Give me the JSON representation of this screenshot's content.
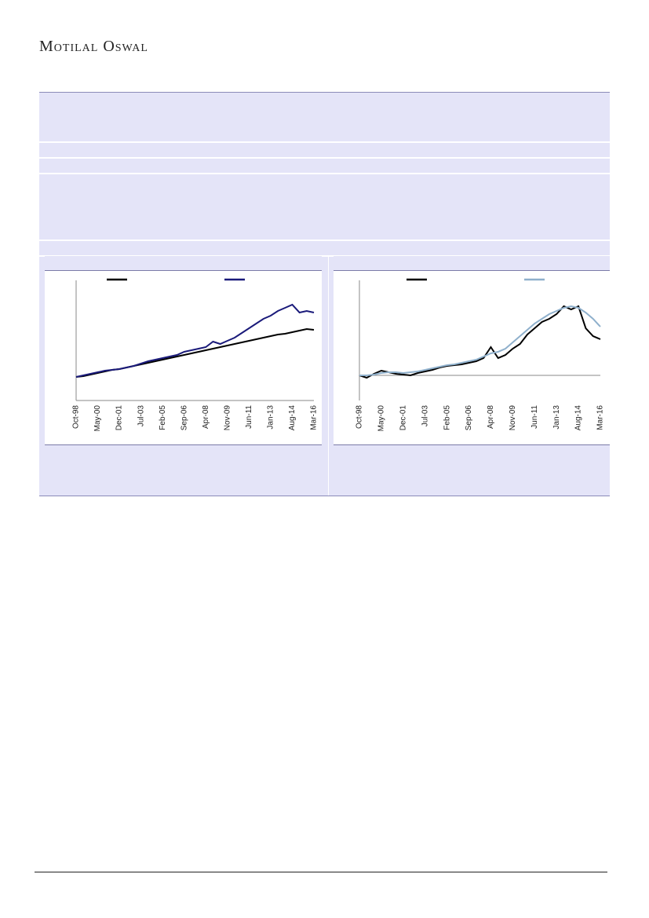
{
  "header": {
    "brand": "Motilal Oswal"
  },
  "chart_data": [
    {
      "type": "line",
      "categories": [
        "Oct-98",
        null,
        null,
        "May-00",
        null,
        null,
        "Dec-01",
        null,
        null,
        "Jul-03",
        null,
        null,
        "Feb-05",
        null,
        null,
        "Sep-06",
        null,
        null,
        "Apr-08",
        null,
        null,
        "Nov-09",
        null,
        null,
        "Jun-11",
        null,
        null,
        "Jan-13",
        null,
        null,
        "Aug-14",
        null,
        null,
        "Mar-16"
      ],
      "ylim": [
        -30,
        123
      ],
      "series": [
        {
          "color": "#000000",
          "values": [
            0,
            1,
            3,
            5,
            7,
            9,
            10,
            12,
            14,
            16,
            18,
            20,
            22,
            24,
            26,
            28,
            30,
            32,
            34,
            36,
            38,
            40,
            42,
            44,
            46,
            48,
            50,
            52,
            54,
            55,
            57,
            59,
            61,
            60
          ]
        },
        {
          "color": "#1a1a7a",
          "values": [
            0,
            2,
            4,
            6,
            8,
            9,
            10,
            12,
            14,
            17,
            20,
            22,
            24,
            26,
            28,
            32,
            34,
            36,
            38,
            45,
            42,
            46,
            50,
            56,
            62,
            68,
            74,
            78,
            84,
            88,
            92,
            82,
            84,
            82
          ]
        }
      ]
    },
    {
      "type": "line",
      "categories": [
        "Oct-98",
        null,
        null,
        "May-00",
        null,
        null,
        "Dec-01",
        null,
        null,
        "Jul-03",
        null,
        null,
        "Feb-05",
        null,
        null,
        "Sep-06",
        null,
        null,
        "Apr-08",
        null,
        null,
        "Nov-09",
        null,
        null,
        "Jun-11",
        null,
        null,
        "Jan-13",
        null,
        null,
        "Aug-14",
        null,
        null,
        "Mar-16"
      ],
      "ylim": [
        -32,
        121
      ],
      "series": [
        {
          "color": "#000000",
          "values": [
            0,
            -3,
            2,
            6,
            4,
            2,
            1,
            0,
            3,
            5,
            7,
            10,
            12,
            13,
            14,
            16,
            18,
            22,
            36,
            22,
            26,
            34,
            40,
            52,
            60,
            68,
            72,
            78,
            88,
            84,
            88,
            60,
            50,
            46
          ]
        },
        {
          "color": "#8fb0cc",
          "values": [
            0,
            0,
            1,
            3,
            4,
            4,
            3,
            4,
            5,
            7,
            9,
            11,
            13,
            14,
            16,
            18,
            20,
            24,
            28,
            30,
            34,
            42,
            50,
            58,
            66,
            72,
            78,
            82,
            86,
            88,
            86,
            80,
            72,
            62
          ]
        }
      ]
    }
  ]
}
